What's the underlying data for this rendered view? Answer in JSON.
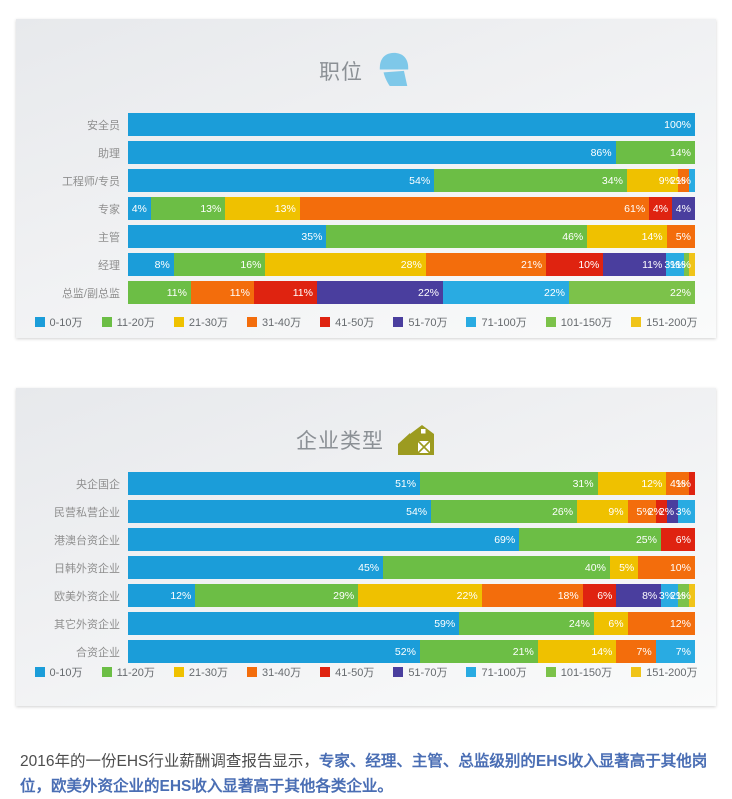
{
  "legend": {
    "items": [
      {
        "label": "0-10万",
        "color": "#1B9DD9"
      },
      {
        "label": "11-20万",
        "color": "#6CBE45"
      },
      {
        "label": "21-30万",
        "color": "#EFC100"
      },
      {
        "label": "31-40万",
        "color": "#F36D0C"
      },
      {
        "label": "41-50万",
        "color": "#DF2310"
      },
      {
        "label": "51-70万",
        "color": "#4A3E9E"
      },
      {
        "label": "71-100万",
        "color": "#29ABE2"
      },
      {
        "label": "101-150万",
        "color": "#7CC24A"
      },
      {
        "label": "151-200万",
        "color": "#F0C419"
      }
    ]
  },
  "chart_data": [
    {
      "type": "bar",
      "subtype": "stacked-horizontal-percent",
      "title": "职位",
      "icon": "hardhat-worker-icon",
      "icon_color": "#7EC8E9",
      "xlim": [
        0,
        100
      ],
      "unit": "%",
      "legend_position": "bottom",
      "categories": [
        "安全员",
        "助理",
        "工程师/专员",
        "专家",
        "主管",
        "经理",
        "总监/副总监"
      ],
      "rows": [
        {
          "label": "安全员",
          "segments": [
            {
              "bucket": "0-10万",
              "value": 100
            }
          ]
        },
        {
          "label": "助理",
          "segments": [
            {
              "bucket": "0-10万",
              "value": 86
            },
            {
              "bucket": "11-20万",
              "value": 14
            }
          ]
        },
        {
          "label": "工程师/专员",
          "segments": [
            {
              "bucket": "0-10万",
              "value": 54
            },
            {
              "bucket": "11-20万",
              "value": 34
            },
            {
              "bucket": "21-30万",
              "value": 9
            },
            {
              "bucket": "31-40万",
              "value": 2
            },
            {
              "bucket": "71-100万",
              "value": 1
            }
          ]
        },
        {
          "label": "专家",
          "segments": [
            {
              "bucket": "0-10万",
              "value": 4
            },
            {
              "bucket": "11-20万",
              "value": 13
            },
            {
              "bucket": "21-30万",
              "value": 13
            },
            {
              "bucket": "31-40万",
              "value": 61
            },
            {
              "bucket": "41-50万",
              "value": 4
            },
            {
              "bucket": "51-70万",
              "value": 4
            }
          ]
        },
        {
          "label": "主管",
          "segments": [
            {
              "bucket": "0-10万",
              "value": 35
            },
            {
              "bucket": "11-20万",
              "value": 46
            },
            {
              "bucket": "21-30万",
              "value": 14
            },
            {
              "bucket": "31-40万",
              "value": 5
            }
          ]
        },
        {
          "label": "经理",
          "segments": [
            {
              "bucket": "0-10万",
              "value": 8
            },
            {
              "bucket": "11-20万",
              "value": 16
            },
            {
              "bucket": "21-30万",
              "value": 28
            },
            {
              "bucket": "31-40万",
              "value": 21
            },
            {
              "bucket": "41-50万",
              "value": 10
            },
            {
              "bucket": "51-70万",
              "value": 11
            },
            {
              "bucket": "71-100万",
              "value": 3
            },
            {
              "bucket": "101-150万",
              "value": 1
            },
            {
              "bucket": "151-200万",
              "value": 1
            }
          ]
        },
        {
          "label": "总监/副总监",
          "segments": [
            {
              "bucket": "11-20万",
              "value": 11
            },
            {
              "bucket": "31-40万",
              "value": 11
            },
            {
              "bucket": "41-50万",
              "value": 11
            },
            {
              "bucket": "51-70万",
              "value": 22
            },
            {
              "bucket": "71-100万",
              "value": 22
            },
            {
              "bucket": "101-150万",
              "value": 22
            }
          ]
        }
      ]
    },
    {
      "type": "bar",
      "subtype": "stacked-horizontal-percent",
      "title": "企业类型",
      "icon": "barn-icon",
      "icon_color": "#9C9B20",
      "xlim": [
        0,
        100
      ],
      "unit": "%",
      "legend_position": "bottom",
      "categories": [
        "央企国企",
        "民营私营企业",
        "港澳台资企业",
        "日韩外资企业",
        "欧美外资企业",
        "其它外资企业",
        "合资企业"
      ],
      "rows": [
        {
          "label": "央企国企",
          "segments": [
            {
              "bucket": "0-10万",
              "value": 51
            },
            {
              "bucket": "11-20万",
              "value": 31
            },
            {
              "bucket": "21-30万",
              "value": 12
            },
            {
              "bucket": "31-40万",
              "value": 4
            },
            {
              "bucket": "41-50万",
              "value": 1
            }
          ]
        },
        {
          "label": "民营私营企业",
          "segments": [
            {
              "bucket": "0-10万",
              "value": 54
            },
            {
              "bucket": "11-20万",
              "value": 26
            },
            {
              "bucket": "21-30万",
              "value": 9
            },
            {
              "bucket": "31-40万",
              "value": 5
            },
            {
              "bucket": "41-50万",
              "value": 2
            },
            {
              "bucket": "51-70万",
              "value": 2
            },
            {
              "bucket": "71-100万",
              "value": 3
            }
          ]
        },
        {
          "label": "港澳台资企业",
          "segments": [
            {
              "bucket": "0-10万",
              "value": 69
            },
            {
              "bucket": "11-20万",
              "value": 25
            },
            {
              "bucket": "41-50万",
              "value": 6
            }
          ]
        },
        {
          "label": "日韩外资企业",
          "segments": [
            {
              "bucket": "0-10万",
              "value": 45
            },
            {
              "bucket": "11-20万",
              "value": 40
            },
            {
              "bucket": "21-30万",
              "value": 5
            },
            {
              "bucket": "31-40万",
              "value": 10
            }
          ]
        },
        {
          "label": "欧美外资企业",
          "segments": [
            {
              "bucket": "0-10万",
              "value": 12
            },
            {
              "bucket": "11-20万",
              "value": 29
            },
            {
              "bucket": "21-30万",
              "value": 22
            },
            {
              "bucket": "31-40万",
              "value": 18
            },
            {
              "bucket": "41-50万",
              "value": 6
            },
            {
              "bucket": "51-70万",
              "value": 8
            },
            {
              "bucket": "71-100万",
              "value": 3
            },
            {
              "bucket": "101-150万",
              "value": 2
            },
            {
              "bucket": "151-200万",
              "value": 1
            }
          ]
        },
        {
          "label": "其它外资企业",
          "segments": [
            {
              "bucket": "0-10万",
              "value": 59
            },
            {
              "bucket": "11-20万",
              "value": 24
            },
            {
              "bucket": "21-30万",
              "value": 6
            },
            {
              "bucket": "31-40万",
              "value": 12
            }
          ]
        },
        {
          "label": "合资企业",
          "segments": [
            {
              "bucket": "0-10万",
              "value": 52
            },
            {
              "bucket": "11-20万",
              "value": 21
            },
            {
              "bucket": "21-30万",
              "value": 14
            },
            {
              "bucket": "31-40万",
              "value": 7
            },
            {
              "bucket": "71-100万",
              "value": 7
            }
          ]
        }
      ]
    }
  ],
  "footer": {
    "normal": "2016年的一份EHS行业薪酬调查报告显示，",
    "highlight": "专家、经理、主管、总监级别的EHS收入显著高于其他岗位，欧美外资企业的EHS收入显著高于其他各类企业。"
  }
}
